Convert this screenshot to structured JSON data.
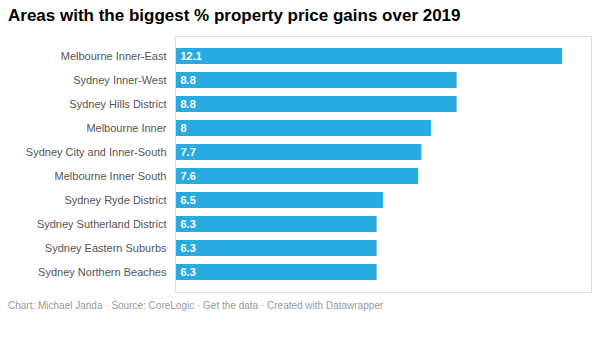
{
  "chart_data": {
    "type": "bar",
    "orientation": "horizontal",
    "title": "Areas with the biggest % property price gains over 2019",
    "caption": "Chart: Michael Janda · Source: CoreLogic · Get the data · Created with Datawrapper",
    "categories": [
      "Melbourne Inner-East",
      "Sydney Inner-West",
      "Sydney Hills District",
      "Melbourne Inner",
      "Sydney City and Inner-South",
      "Melbourne Inner South",
      "Sydney Ryde District",
      "Sydney Sutherland District",
      "Sydney Eastern Suburbs",
      "Sydney Northern Beaches"
    ],
    "values": [
      12.1,
      8.8,
      8.8,
      8.0,
      7.7,
      7.6,
      6.5,
      6.3,
      6.3,
      6.3
    ],
    "color": "#29abe2",
    "xlim": [
      0,
      13
    ],
    "data_labels": true,
    "tick_labels": "y",
    "grid": false
  }
}
